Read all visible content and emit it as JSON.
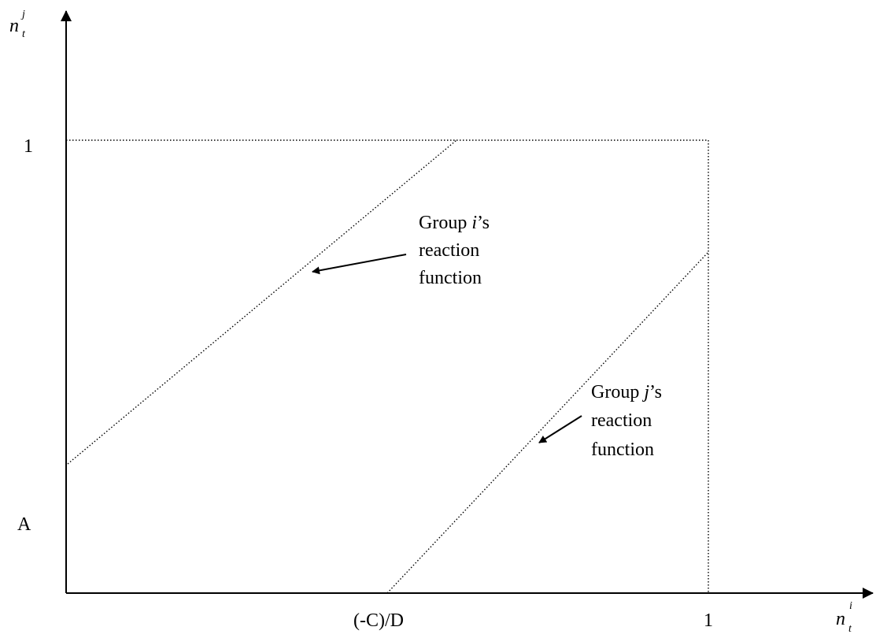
{
  "axes": {
    "y_var": {
      "base": "n",
      "sup": "j",
      "sub": "t"
    },
    "x_var": {
      "base": "n",
      "sup": "i",
      "sub": "t"
    }
  },
  "ticks": {
    "y_one": "1",
    "y_a": "A",
    "x_c": "(-C)/D",
    "x_one": "1"
  },
  "annotations": {
    "group_i": {
      "prefix": "Group ",
      "italic": "i",
      "suffix": "’s",
      "line2": "reaction",
      "line3": "function"
    },
    "group_j": {
      "prefix": "Group ",
      "italic": "j",
      "suffix": "’s",
      "line2": "reaction",
      "line3": "function"
    }
  }
}
